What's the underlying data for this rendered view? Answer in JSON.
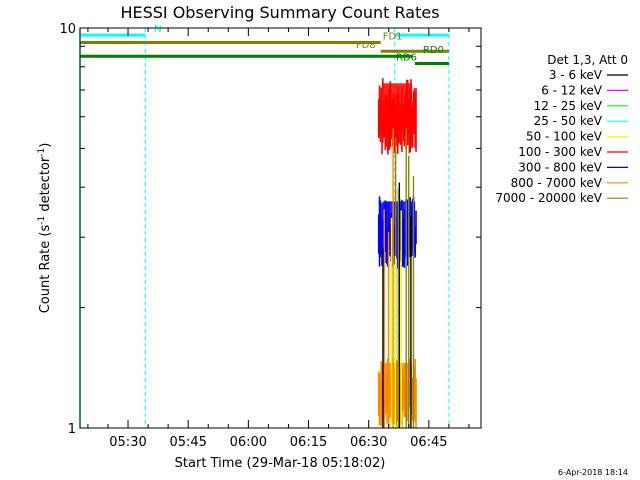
{
  "chart_data": {
    "type": "line",
    "title": "HESSI Observing Summary Count Rates",
    "xlabel": "Start Time (29-Mar-18 05:18:02)",
    "ylabel_parts": [
      "Count Rate (s",
      "-1",
      " detector",
      "-1",
      ")"
    ],
    "x_ticks": [
      "05:30",
      "05:45",
      "06:00",
      "06:15",
      "06:30",
      "06:45"
    ],
    "x_tick_minutes": [
      330,
      345,
      360,
      375,
      390,
      405
    ],
    "x_range_minutes": [
      318.03,
      418
    ],
    "y_scale": "log",
    "y_range": [
      1,
      10
    ],
    "y_tick_labels": [
      "1",
      "10"
    ],
    "legend_header": "Det 1,3, Att 0",
    "series": [
      {
        "name": "3 - 6 keV",
        "color": "#000000"
      },
      {
        "name": "6 - 12 keV",
        "color": "#ff00ff"
      },
      {
        "name": "12 - 25 keV",
        "color": "#00ff00"
      },
      {
        "name": "25 - 50 keV",
        "color": "#00ffff"
      },
      {
        "name": "50 - 100 keV",
        "color": "#ffff00"
      },
      {
        "name": "100 - 300 keV",
        "color": "#ff0000"
      },
      {
        "name": "300 - 800 keV",
        "color": "#0000ff"
      },
      {
        "name": "800 - 7000 keV",
        "color": "#ff8800"
      },
      {
        "name": "7000 - 20000 keV",
        "color": "#888800"
      }
    ],
    "data_window_minutes": [
      392.5,
      401.8
    ],
    "rate_levels": [
      {
        "series": "100 - 300 keV",
        "low": 4.8,
        "high": 7.5
      },
      {
        "series": "300 - 800 keV",
        "low": 2.5,
        "high": 3.8
      },
      {
        "series": "800 - 7000 keV",
        "low": 1.0,
        "high": 1.5
      }
    ],
    "flag_bars": [
      {
        "label": "N",
        "start": 318.03,
        "end": 334.3,
        "level": 9.6,
        "color": "#00ffff",
        "label_at": 336.5
      },
      {
        "label": "",
        "start": 396.5,
        "end": 410.0,
        "level": 9.6,
        "color": "#00ffff",
        "label_at": null
      },
      {
        "label": "FD1",
        "start": 318.03,
        "end": 393.0,
        "level": 9.2,
        "color": "#808000",
        "label_at": 393.5
      },
      {
        "label": "FD8",
        "start": 393.0,
        "end": 410.0,
        "level": 8.75,
        "color": "#808000",
        "label_at": 386.8
      },
      {
        "label": "RD0",
        "start": 318.03,
        "end": 401.0,
        "level": 8.5,
        "color": "#008000",
        "label_at": 403.5
      },
      {
        "label": "RD6",
        "start": 401.5,
        "end": 410.0,
        "level": 8.15,
        "color": "#008000",
        "label_at": 396.8
      }
    ],
    "dashed_lines": [
      {
        "x": 334.3,
        "color": "#00ffff"
      },
      {
        "x": 396.5,
        "color": "#00ffff"
      },
      {
        "x": 410.0,
        "color": "#00ffff"
      }
    ],
    "solid_vline": {
      "x": 318.03,
      "color": "#00ffff"
    },
    "footer_date": "6-Apr-2018 18:14"
  }
}
